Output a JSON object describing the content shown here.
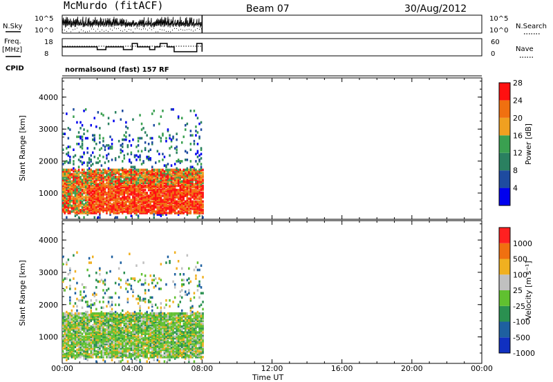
{
  "header": {
    "station": "McMurdo (fitACF)",
    "beam": "Beam 07",
    "date": "30/Aug/2012"
  },
  "noise_panel": {
    "left_label": "N.Sky",
    "right_label": "N.Search",
    "left_ticks": [
      "10^5",
      "10^0"
    ],
    "right_ticks": [
      "10^5",
      "10^0"
    ]
  },
  "freq_panel": {
    "left_label_1": "Freq.",
    "left_label_2": "[MHz]",
    "right_label": "Nave",
    "left_ticks": [
      "18",
      "8"
    ],
    "right_ticks": [
      "60",
      "0"
    ]
  },
  "cpid": {
    "label": "CPID",
    "value": "normalsound (fast) 157 RF"
  },
  "time_axis": {
    "label": "Time UT",
    "ticks": [
      "00:00",
      "04:00",
      "08:00",
      "12:00",
      "16:00",
      "20:00",
      "00:00"
    ]
  },
  "chart_data": [
    {
      "type": "heatmap",
      "title": "",
      "xlabel": "Time UT",
      "ylabel": "Slant Range [km]",
      "xlim_hours": [
        0,
        24
      ],
      "ylim_km": [
        180,
        4600
      ],
      "y_ticks": [
        1000,
        2000,
        3000,
        4000
      ],
      "data_extent_hours": [
        0,
        8
      ],
      "colorbar": {
        "label": "Power [dB]",
        "ticks": [
          "4",
          "8",
          "12",
          "16",
          "20",
          "24",
          "28"
        ],
        "colors": [
          "#0000ee",
          "#1e4ba0",
          "#2a8060",
          "#3aa050",
          "#f0a020",
          "#f07010",
          "#ff1010"
        ]
      }
    },
    {
      "type": "heatmap",
      "title": "",
      "xlabel": "Time UT",
      "ylabel": "Slant Range [km]",
      "xlim_hours": [
        0,
        24
      ],
      "ylim_km": [
        180,
        4600
      ],
      "y_ticks": [
        1000,
        2000,
        3000,
        4000
      ],
      "data_extent_hours": [
        0,
        8
      ],
      "colorbar": {
        "label": "Velocity [m s⁻¹]",
        "ticks": [
          "1000",
          "500",
          "100",
          "25",
          "-25",
          "-100",
          "-500",
          "-1000"
        ],
        "colors": [
          "#1030c0",
          "#1e60a0",
          "#2a9050",
          "#60c030",
          "#c0c0c0",
          "#f0b020",
          "#f07010",
          "#ff2020"
        ]
      }
    }
  ]
}
